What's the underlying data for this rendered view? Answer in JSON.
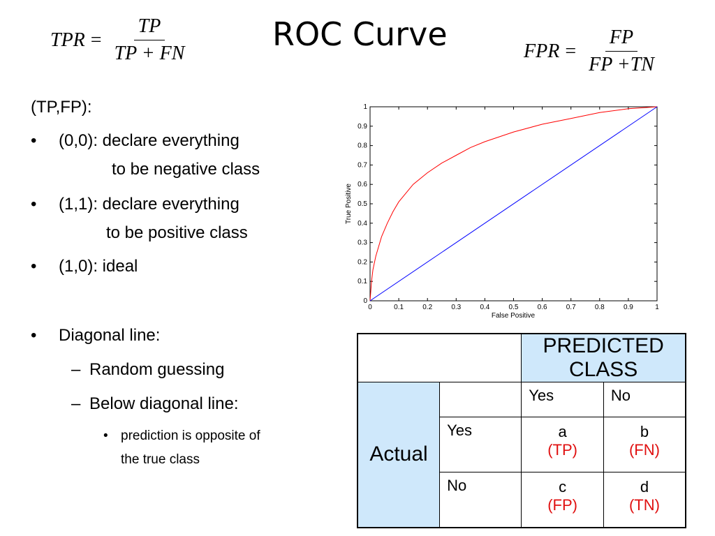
{
  "slide": {
    "title": "ROC Curve",
    "tpr_formula": {
      "lhs": "TPR",
      "eq": "=",
      "num": "TP",
      "den": "TP + FN"
    },
    "fpr_formula": {
      "lhs": "FPR",
      "eq": "=",
      "num": "FP",
      "den": "FP +TN"
    }
  },
  "bullets": {
    "heading": "(TP,FP):",
    "b1_line1": "(0,0): declare everything",
    "b1_line2": "to be negative class",
    "b2_line1": "(1,1): declare everything",
    "b2_line2": "to be positive class",
    "b3": "(1,0): ideal",
    "b4": "Diagonal line:",
    "sub1": "Random guessing",
    "sub2": "Below diagonal line:",
    "subsub1_line1": "prediction is opposite of",
    "subsub1_line2": "the true class",
    "bullet_char": "•",
    "dash_char": "–"
  },
  "chart_data": {
    "type": "line",
    "xlabel": "False Positive",
    "ylabel": "True Positive",
    "xlim": [
      0,
      1
    ],
    "ylim": [
      0,
      1
    ],
    "xticks": [
      "0",
      "0.1",
      "0.2",
      "0.3",
      "0.4",
      "0.5",
      "0.6",
      "0.7",
      "0.8",
      "0.9",
      "1"
    ],
    "yticks": [
      "0",
      "0.1",
      "0.2",
      "0.3",
      "0.4",
      "0.5",
      "0.6",
      "0.7",
      "0.8",
      "0.9",
      "1"
    ],
    "grid": false,
    "series": [
      {
        "color": "#ff0000",
        "x": [
          0,
          0.005,
          0.01,
          0.02,
          0.04,
          0.06,
          0.08,
          0.1,
          0.15,
          0.2,
          0.25,
          0.3,
          0.35,
          0.4,
          0.5,
          0.6,
          0.7,
          0.8,
          0.9,
          1.0
        ],
        "y": [
          0,
          0.1,
          0.16,
          0.23,
          0.33,
          0.4,
          0.46,
          0.51,
          0.6,
          0.66,
          0.71,
          0.75,
          0.79,
          0.82,
          0.87,
          0.91,
          0.94,
          0.97,
          0.99,
          1.0
        ]
      },
      {
        "color": "#0000ff",
        "x": [
          0,
          1
        ],
        "y": [
          0,
          1
        ]
      }
    ]
  },
  "matrix": {
    "predicted_class": "PREDICTED CLASS",
    "yes": "Yes",
    "no": "No",
    "actual": "Actual",
    "row_yes": "Yes",
    "row_no": "No",
    "a": "a",
    "a_lbl": "(TP)",
    "b": "b",
    "b_lbl": "(FN)",
    "c": "c",
    "c_lbl": "(FP)",
    "d": "d",
    "d_lbl": "(TN)",
    "colors": {
      "header_bg": "#cfe8fb",
      "label_red": "#e01010"
    }
  }
}
